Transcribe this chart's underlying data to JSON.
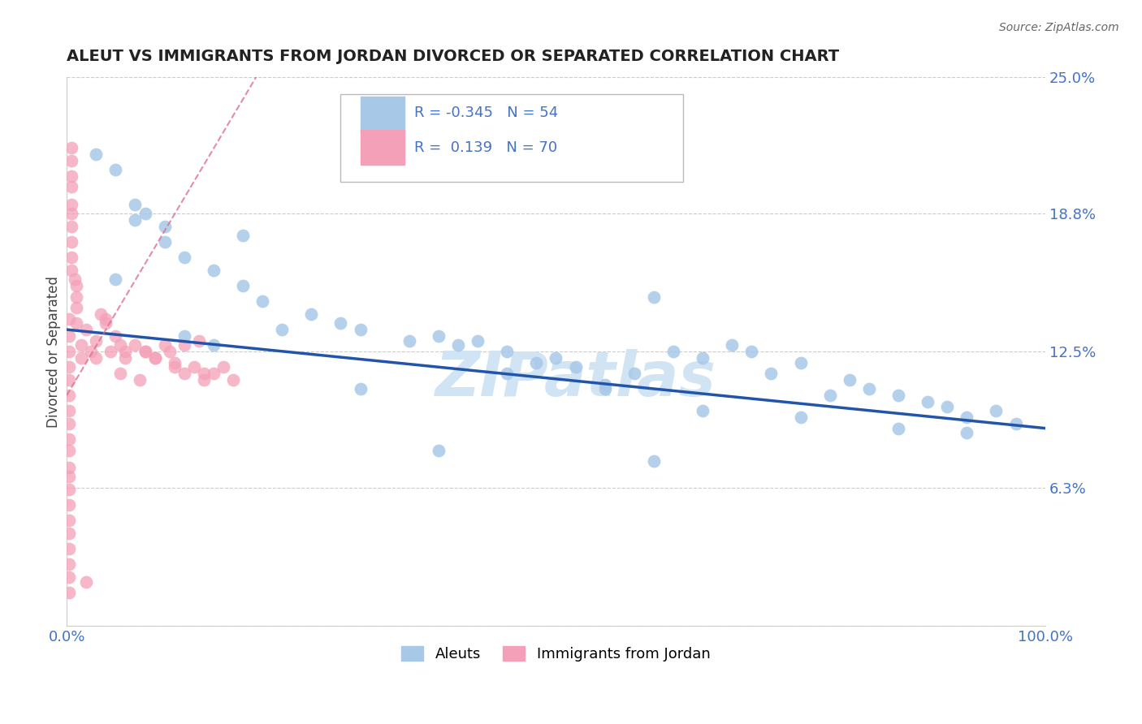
{
  "title": "ALEUT VS IMMIGRANTS FROM JORDAN DIVORCED OR SEPARATED CORRELATION CHART",
  "source": "Source: ZipAtlas.com",
  "ylabel": "Divorced or Separated",
  "xlim": [
    0.0,
    100.0
  ],
  "ylim": [
    0.0,
    25.0
  ],
  "yticks": [
    0.0,
    6.3,
    12.5,
    18.8,
    25.0
  ],
  "ytick_labels": [
    "",
    "6.3%",
    "12.5%",
    "18.8%",
    "25.0%"
  ],
  "xticks": [
    0.0,
    25.0,
    50.0,
    75.0,
    100.0
  ],
  "xtick_labels": [
    "0.0%",
    "",
    "",
    "",
    "100.0%"
  ],
  "legend_r_blue": "-0.345",
  "legend_n_blue": "54",
  "legend_r_pink": "0.139",
  "legend_n_pink": "70",
  "blue_color": "#a8c8e8",
  "pink_color": "#f4a0b8",
  "trend_blue_color": "#2255aa",
  "trend_pink_color": "#dd7090",
  "watermark_color": "#d0e4f4",
  "blue_x": [
    3,
    5,
    7,
    8,
    10,
    10,
    12,
    15,
    18,
    20,
    25,
    28,
    30,
    35,
    38,
    40,
    42,
    45,
    48,
    50,
    52,
    55,
    58,
    60,
    62,
    65,
    68,
    70,
    72,
    75,
    78,
    80,
    82,
    85,
    88,
    90,
    92,
    95,
    97,
    5,
    7,
    12,
    15,
    18,
    22,
    30,
    45,
    55,
    65,
    75,
    85,
    92,
    38,
    60
  ],
  "blue_y": [
    21.5,
    20.8,
    19.2,
    18.8,
    18.2,
    17.5,
    16.8,
    16.2,
    15.5,
    14.8,
    14.2,
    13.8,
    13.5,
    13.0,
    13.2,
    12.8,
    13.0,
    12.5,
    12.0,
    12.2,
    11.8,
    10.8,
    11.5,
    15.0,
    12.5,
    12.2,
    12.8,
    12.5,
    11.5,
    12.0,
    10.5,
    11.2,
    10.8,
    10.5,
    10.2,
    10.0,
    9.5,
    9.8,
    9.2,
    15.8,
    18.5,
    13.2,
    12.8,
    17.8,
    13.5,
    10.8,
    11.5,
    11.0,
    9.8,
    9.5,
    9.0,
    8.8,
    8.0,
    7.5
  ],
  "pink_x": [
    0.2,
    0.2,
    0.2,
    0.2,
    0.2,
    0.2,
    0.2,
    0.2,
    0.2,
    0.2,
    0.2,
    0.2,
    0.2,
    0.2,
    0.2,
    0.2,
    0.2,
    0.2,
    0.2,
    0.2,
    0.5,
    0.5,
    0.5,
    0.5,
    0.5,
    0.5,
    0.5,
    0.5,
    0.5,
    0.5,
    1.0,
    1.0,
    1.0,
    1.0,
    1.5,
    1.5,
    2.0,
    2.5,
    3.0,
    3.5,
    4.0,
    4.5,
    5.0,
    5.5,
    6.0,
    7.0,
    8.0,
    9.0,
    10.0,
    11.0,
    12.0,
    13.0,
    14.0,
    15.0,
    16.0,
    17.0,
    5.5,
    7.5,
    10.5,
    13.5,
    4.0,
    6.0,
    9.0,
    12.0,
    3.0,
    8.0,
    11.0,
    14.0,
    2.0,
    0.8
  ],
  "pink_y": [
    14.0,
    13.2,
    12.5,
    11.8,
    11.2,
    10.5,
    9.8,
    9.2,
    8.5,
    8.0,
    7.2,
    6.8,
    6.2,
    5.5,
    4.8,
    4.2,
    3.5,
    2.8,
    2.2,
    1.5,
    21.8,
    21.2,
    20.5,
    20.0,
    19.2,
    18.8,
    18.2,
    17.5,
    16.8,
    16.2,
    15.5,
    15.0,
    14.5,
    13.8,
    12.8,
    12.2,
    13.5,
    12.5,
    13.0,
    14.2,
    13.8,
    12.5,
    13.2,
    12.8,
    12.2,
    12.8,
    12.5,
    12.2,
    12.8,
    12.0,
    11.5,
    11.8,
    11.2,
    11.5,
    11.8,
    11.2,
    11.5,
    11.2,
    12.5,
    13.0,
    14.0,
    12.5,
    12.2,
    12.8,
    12.2,
    12.5,
    11.8,
    11.5,
    2.0,
    15.8
  ],
  "blue_trend_x0": 0,
  "blue_trend_x1": 100,
  "blue_trend_y0": 13.5,
  "blue_trend_y1": 9.0,
  "pink_trend_x0": 0,
  "pink_trend_x1": 20,
  "pink_trend_y0": 10.5,
  "pink_trend_y1": 25.5
}
